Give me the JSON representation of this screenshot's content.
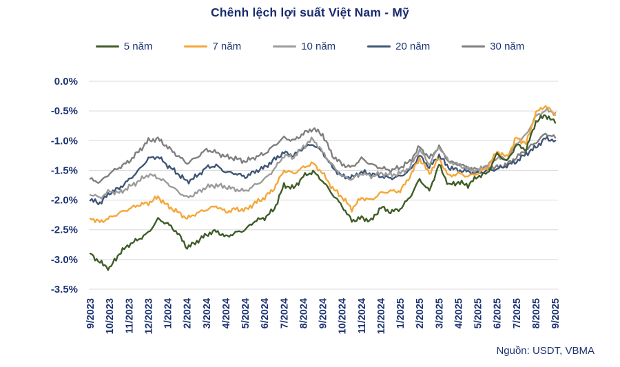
{
  "title": "Chênh lệch lợi suất Việt Nam - Mỹ",
  "source": "Nguồn: USDT, VBMA",
  "colors": {
    "title_text": "#1a2c6d",
    "axis_text": "#1d3473",
    "gridline": "#d8d8d8",
    "background": "#ffffff"
  },
  "chart_data": {
    "type": "line",
    "title": "Chênh lệch lợi suất Việt Nam - Mỹ",
    "xlabel": "",
    "ylabel": "",
    "ylim": [
      -3.5,
      0
    ],
    "grid": "horizontal",
    "legend_position": "top",
    "ytick_labels": [
      "0.0%",
      "-0.5%",
      "-1.0%",
      "-1.5%",
      "-2.0%",
      "-2.5%",
      "-3.0%",
      "-3.5%"
    ],
    "ytick_values": [
      0,
      -0.5,
      -1.0,
      -1.5,
      -2.0,
      -2.5,
      -3.0,
      -3.5
    ],
    "categories": [
      "9/2023",
      "10/2023",
      "11/2023",
      "12/2023",
      "1/2024",
      "2/2024",
      "3/2024",
      "4/2024",
      "5/2024",
      "6/2024",
      "7/2024",
      "8/2024",
      "9/2024",
      "10/2024",
      "11/2024",
      "12/2024",
      "1/2025",
      "2/2025",
      "3/2025",
      "4/2025",
      "5/2025",
      "6/2025",
      "7/2025",
      "8/2025",
      "9/2025"
    ],
    "points_per_month": 2,
    "unit": "%",
    "series": [
      {
        "name": "5 năm",
        "color": "#3d5c27",
        "values": [
          -2.9,
          -3.05,
          -3.15,
          -2.9,
          -2.75,
          -2.66,
          -2.55,
          -2.32,
          -2.4,
          -2.55,
          -2.8,
          -2.7,
          -2.58,
          -2.52,
          -2.62,
          -2.55,
          -2.5,
          -2.35,
          -2.3,
          -2.15,
          -1.75,
          -1.8,
          -1.6,
          -1.52,
          -1.68,
          -1.9,
          -2.1,
          -2.35,
          -2.3,
          -2.35,
          -2.12,
          -2.2,
          -2.15,
          -1.95,
          -1.65,
          -1.85,
          -1.4,
          -1.75,
          -1.7,
          -1.75,
          -1.6,
          -1.55,
          -1.22,
          -1.35,
          -1.07,
          -1.15,
          -0.68,
          -0.57,
          -0.7
        ]
      },
      {
        "name": "7 năm",
        "color": "#f4a738",
        "values": [
          -2.3,
          -2.37,
          -2.3,
          -2.22,
          -2.15,
          -2.08,
          -2.05,
          -1.95,
          -2.1,
          -2.2,
          -2.31,
          -2.22,
          -2.16,
          -2.1,
          -2.2,
          -2.15,
          -2.17,
          -2.05,
          -1.96,
          -1.8,
          -1.5,
          -1.55,
          -1.45,
          -1.38,
          -1.55,
          -1.8,
          -1.95,
          -2.15,
          -1.96,
          -2.0,
          -1.88,
          -1.85,
          -1.85,
          -1.6,
          -1.3,
          -1.55,
          -1.3,
          -1.6,
          -1.55,
          -1.6,
          -1.55,
          -1.45,
          -1.18,
          -1.28,
          -0.95,
          -1.05,
          -0.53,
          -0.41,
          -0.57
        ]
      },
      {
        "name": "10 năm",
        "color": "#9b9b9b",
        "values": [
          -1.9,
          -1.96,
          -1.85,
          -1.88,
          -1.78,
          -1.68,
          -1.57,
          -1.62,
          -1.72,
          -1.85,
          -1.96,
          -1.88,
          -1.78,
          -1.75,
          -1.78,
          -1.82,
          -1.85,
          -1.75,
          -1.65,
          -1.48,
          -1.25,
          -1.28,
          -1.1,
          -0.97,
          -1.2,
          -1.42,
          -1.6,
          -1.65,
          -1.55,
          -1.6,
          -1.55,
          -1.58,
          -1.55,
          -1.45,
          -1.15,
          -1.4,
          -1.1,
          -1.35,
          -1.4,
          -1.48,
          -1.5,
          -1.42,
          -1.28,
          -1.32,
          -1.05,
          -0.9,
          -0.59,
          -0.49,
          -0.53
        ]
      },
      {
        "name": "20 năm",
        "color": "#3e5577",
        "values": [
          -2.0,
          -2.05,
          -1.88,
          -1.8,
          -1.66,
          -1.5,
          -1.3,
          -1.27,
          -1.42,
          -1.55,
          -1.69,
          -1.6,
          -1.45,
          -1.42,
          -1.53,
          -1.55,
          -1.61,
          -1.52,
          -1.45,
          -1.32,
          -1.2,
          -1.25,
          -1.12,
          -1.06,
          -1.2,
          -1.45,
          -1.6,
          -1.62,
          -1.53,
          -1.56,
          -1.6,
          -1.63,
          -1.6,
          -1.5,
          -1.25,
          -1.45,
          -1.25,
          -1.45,
          -1.5,
          -1.52,
          -1.55,
          -1.5,
          -1.48,
          -1.42,
          -1.35,
          -1.22,
          -1.11,
          -0.96,
          -1.0
        ]
      },
      {
        "name": "30 năm",
        "color": "#7f7f7f",
        "values": [
          -1.65,
          -1.7,
          -1.55,
          -1.45,
          -1.35,
          -1.18,
          -1.0,
          -0.97,
          -1.11,
          -1.25,
          -1.38,
          -1.28,
          -1.15,
          -1.2,
          -1.27,
          -1.3,
          -1.35,
          -1.28,
          -1.22,
          -1.08,
          -0.95,
          -1.0,
          -0.88,
          -0.8,
          -0.9,
          -1.25,
          -1.4,
          -1.45,
          -1.3,
          -1.4,
          -1.46,
          -1.5,
          -1.45,
          -1.35,
          -1.1,
          -1.3,
          -1.1,
          -1.35,
          -1.4,
          -1.45,
          -1.5,
          -1.45,
          -1.45,
          -1.4,
          -1.28,
          -1.15,
          -1.03,
          -0.88,
          -0.95
        ]
      }
    ]
  }
}
